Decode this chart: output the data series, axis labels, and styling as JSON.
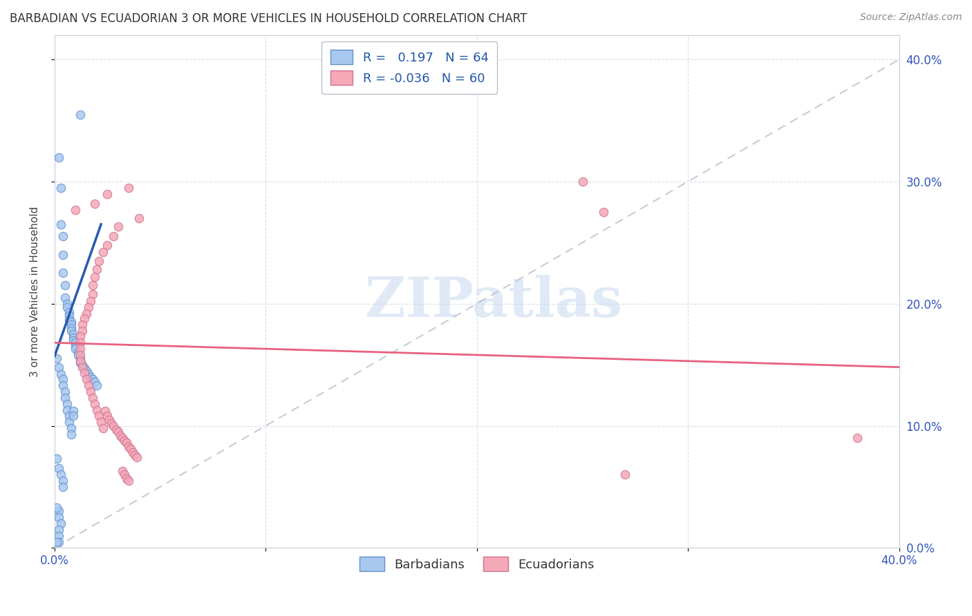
{
  "title": "BARBADIAN VS ECUADORIAN 3 OR MORE VEHICLES IN HOUSEHOLD CORRELATION CHART",
  "source": "Source: ZipAtlas.com",
  "ylabel": "3 or more Vehicles in Household",
  "barbadian_color": "#a8c8f0",
  "barbadian_edge_color": "#6090c8",
  "ecuadorian_color": "#f4a8b8",
  "ecuadorian_edge_color": "#d07090",
  "barbadian_line_color": "#2858b0",
  "ecuadorian_line_color": "#e86080",
  "diagonal_color": "#b8c0cc",
  "R_barbadian": 0.197,
  "N_barbadian": 64,
  "R_ecuadorian": -0.036,
  "N_ecuadorian": 60,
  "barbadian_line": [
    [
      0.0,
      0.157
    ],
    [
      0.022,
      0.265
    ]
  ],
  "ecuadorian_line": [
    [
      0.0,
      0.168
    ],
    [
      0.4,
      0.148
    ]
  ],
  "diagonal_line": [
    [
      0.0,
      0.0
    ],
    [
      0.4,
      0.4
    ]
  ],
  "barbadian_points": [
    [
      0.012,
      0.355
    ],
    [
      0.002,
      0.32
    ],
    [
      0.003,
      0.295
    ],
    [
      0.003,
      0.265
    ],
    [
      0.004,
      0.255
    ],
    [
      0.004,
      0.24
    ],
    [
      0.004,
      0.225
    ],
    [
      0.005,
      0.215
    ],
    [
      0.005,
      0.205
    ],
    [
      0.006,
      0.2
    ],
    [
      0.006,
      0.197
    ],
    [
      0.007,
      0.193
    ],
    [
      0.007,
      0.19
    ],
    [
      0.007,
      0.187
    ],
    [
      0.008,
      0.185
    ],
    [
      0.008,
      0.183
    ],
    [
      0.008,
      0.18
    ],
    [
      0.008,
      0.178
    ],
    [
      0.009,
      0.175
    ],
    [
      0.009,
      0.172
    ],
    [
      0.009,
      0.17
    ],
    [
      0.01,
      0.168
    ],
    [
      0.01,
      0.165
    ],
    [
      0.01,
      0.163
    ],
    [
      0.011,
      0.16
    ],
    [
      0.011,
      0.158
    ],
    [
      0.012,
      0.155
    ],
    [
      0.012,
      0.152
    ],
    [
      0.013,
      0.15
    ],
    [
      0.014,
      0.147
    ],
    [
      0.015,
      0.145
    ],
    [
      0.016,
      0.142
    ],
    [
      0.017,
      0.14
    ],
    [
      0.018,
      0.138
    ],
    [
      0.019,
      0.136
    ],
    [
      0.02,
      0.133
    ],
    [
      0.001,
      0.155
    ],
    [
      0.002,
      0.148
    ],
    [
      0.003,
      0.142
    ],
    [
      0.004,
      0.138
    ],
    [
      0.004,
      0.133
    ],
    [
      0.005,
      0.128
    ],
    [
      0.005,
      0.123
    ],
    [
      0.006,
      0.118
    ],
    [
      0.006,
      0.113
    ],
    [
      0.007,
      0.108
    ],
    [
      0.007,
      0.103
    ],
    [
      0.008,
      0.098
    ],
    [
      0.008,
      0.093
    ],
    [
      0.009,
      0.112
    ],
    [
      0.009,
      0.108
    ],
    [
      0.002,
      0.065
    ],
    [
      0.003,
      0.06
    ],
    [
      0.004,
      0.055
    ],
    [
      0.004,
      0.05
    ],
    [
      0.002,
      0.03
    ],
    [
      0.002,
      0.025
    ],
    [
      0.003,
      0.02
    ],
    [
      0.002,
      0.015
    ],
    [
      0.002,
      0.01
    ],
    [
      0.002,
      0.005
    ],
    [
      0.001,
      0.005
    ],
    [
      0.001,
      0.073
    ],
    [
      0.001,
      0.033
    ]
  ],
  "ecuadorian_points": [
    [
      0.035,
      0.295
    ],
    [
      0.025,
      0.29
    ],
    [
      0.019,
      0.282
    ],
    [
      0.01,
      0.277
    ],
    [
      0.04,
      0.27
    ],
    [
      0.03,
      0.263
    ],
    [
      0.028,
      0.255
    ],
    [
      0.025,
      0.248
    ],
    [
      0.023,
      0.242
    ],
    [
      0.021,
      0.235
    ],
    [
      0.02,
      0.228
    ],
    [
      0.019,
      0.222
    ],
    [
      0.018,
      0.215
    ],
    [
      0.018,
      0.208
    ],
    [
      0.017,
      0.202
    ],
    [
      0.016,
      0.197
    ],
    [
      0.015,
      0.192
    ],
    [
      0.014,
      0.188
    ],
    [
      0.013,
      0.183
    ],
    [
      0.013,
      0.178
    ],
    [
      0.012,
      0.173
    ],
    [
      0.012,
      0.168
    ],
    [
      0.012,
      0.163
    ],
    [
      0.012,
      0.158
    ],
    [
      0.012,
      0.153
    ],
    [
      0.013,
      0.148
    ],
    [
      0.014,
      0.143
    ],
    [
      0.015,
      0.138
    ],
    [
      0.016,
      0.133
    ],
    [
      0.017,
      0.128
    ],
    [
      0.018,
      0.123
    ],
    [
      0.019,
      0.118
    ],
    [
      0.02,
      0.113
    ],
    [
      0.021,
      0.108
    ],
    [
      0.022,
      0.103
    ],
    [
      0.023,
      0.098
    ],
    [
      0.024,
      0.112
    ],
    [
      0.025,
      0.108
    ],
    [
      0.026,
      0.105
    ],
    [
      0.027,
      0.102
    ],
    [
      0.028,
      0.1
    ],
    [
      0.029,
      0.097
    ],
    [
      0.03,
      0.095
    ],
    [
      0.031,
      0.092
    ],
    [
      0.032,
      0.09
    ],
    [
      0.033,
      0.088
    ],
    [
      0.034,
      0.086
    ],
    [
      0.035,
      0.083
    ],
    [
      0.036,
      0.081
    ],
    [
      0.037,
      0.078
    ],
    [
      0.038,
      0.076
    ],
    [
      0.039,
      0.074
    ],
    [
      0.032,
      0.063
    ],
    [
      0.033,
      0.06
    ],
    [
      0.034,
      0.057
    ],
    [
      0.035,
      0.055
    ],
    [
      0.25,
      0.3
    ],
    [
      0.26,
      0.275
    ],
    [
      0.38,
      0.09
    ],
    [
      0.27,
      0.06
    ]
  ],
  "xlim": [
    0.0,
    0.4
  ],
  "ylim": [
    0.0,
    0.42
  ],
  "xtick_positions": [
    0.0,
    0.1,
    0.2,
    0.3,
    0.4
  ],
  "xtick_labels": [
    "0.0%",
    "",
    "",
    "",
    "40.0%"
  ],
  "ytick_positions": [
    0.0,
    0.1,
    0.2,
    0.3,
    0.4
  ],
  "ytick_labels": [
    "0.0%",
    "10.0%",
    "20.0%",
    "30.0%",
    "40.0%"
  ],
  "grid_color": "#d8dde8",
  "watermark_text": "ZIPatlas",
  "watermark_color": "#ccddf0",
  "marker_size": 80
}
